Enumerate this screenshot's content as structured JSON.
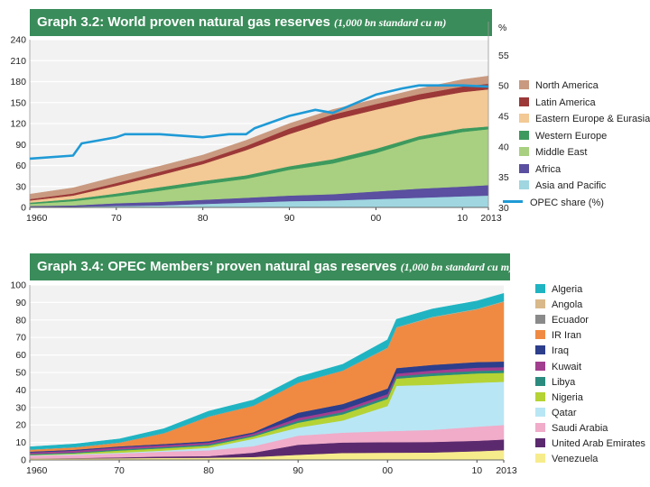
{
  "chart_data": [
    {
      "type": "area",
      "title": "Graph 3.2: World proven natural gas reserves",
      "unit": "(1,000 bn standard cu m)",
      "x": [
        1960,
        1965,
        1970,
        1975,
        1980,
        1985,
        1990,
        1995,
        2000,
        2005,
        2010,
        2013
      ],
      "x_ticks": [
        "1960",
        "70",
        "80",
        "90",
        "00",
        "10",
        "2013"
      ],
      "x_tick_values": [
        1960,
        1970,
        1980,
        1990,
        2000,
        2010,
        2013
      ],
      "ylim": [
        0,
        240
      ],
      "y_ticks": [
        "0",
        "30",
        "60",
        "90",
        "120",
        "150",
        "180",
        "210",
        "240"
      ],
      "y2_label": "%",
      "y2lim": [
        30,
        57.5
      ],
      "y2_ticks": [
        "30",
        "35",
        "40",
        "45",
        "50",
        "55"
      ],
      "stacked": true,
      "series": [
        {
          "name": "Asia and Pacific",
          "color": "#9fd6e0",
          "values": [
            1,
            1,
            2,
            3,
            5,
            7,
            9,
            10,
            12,
            14,
            16,
            17
          ]
        },
        {
          "name": "Africa",
          "color": "#5a4fa0",
          "values": [
            1,
            2,
            4,
            5,
            6,
            7,
            8,
            9,
            11,
            13,
            14,
            15
          ]
        },
        {
          "name": "Middle East",
          "color": "#a8d080",
          "values": [
            3,
            6,
            10,
            16,
            22,
            27,
            37,
            44,
            55,
            70,
            78,
            80
          ]
        },
        {
          "name": "Western Europe",
          "color": "#3d9a5e",
          "values": [
            2,
            3,
            4,
            5,
            5,
            5,
            5,
            6,
            6,
            5,
            5,
            4
          ]
        },
        {
          "name": "Eastern Europe & Eurasia",
          "color": "#f3c995",
          "values": [
            3,
            5,
            11,
            17,
            24,
            36,
            46,
            56,
            56,
            52,
            52,
            53
          ]
        },
        {
          "name": "Latin America",
          "color": "#9c3838",
          "values": [
            2,
            3,
            4,
            5,
            5,
            6,
            8,
            8,
            8,
            8,
            8,
            8
          ]
        },
        {
          "name": "North America",
          "color": "#c99a80",
          "values": [
            7,
            8,
            9,
            8,
            8,
            8,
            7,
            7,
            7,
            8,
            10,
            11
          ]
        }
      ],
      "line_series": {
        "name": "OPEC share (%)",
        "color": "#1f9ad6",
        "x": [
          1960,
          1965,
          1966,
          1968,
          1970,
          1971,
          1975,
          1980,
          1983,
          1985,
          1986,
          1990,
          1993,
          1995,
          2000,
          2003,
          2005,
          2008,
          2010,
          2013
        ],
        "values": [
          38,
          38.5,
          40.5,
          41,
          41.5,
          42,
          42,
          41.5,
          42,
          42,
          43,
          45,
          46,
          45.5,
          48.5,
          49.5,
          50,
          50,
          50,
          49.8
        ]
      }
    },
    {
      "type": "area",
      "title": "Graph 3.4: OPEC Members’ proven natural gas reserves",
      "unit": "(1,000 bn standard cu m)",
      "x": [
        1960,
        1965,
        1970,
        1975,
        1980,
        1985,
        1990,
        1995,
        2000,
        2001,
        2005,
        2010,
        2013
      ],
      "x_ticks": [
        "1960",
        "70",
        "80",
        "90",
        "00",
        "10",
        "2013"
      ],
      "x_tick_values": [
        1960,
        1970,
        1980,
        1990,
        2000,
        2010,
        2013
      ],
      "ylim": [
        0,
        100
      ],
      "y_ticks": [
        "0",
        "10",
        "20",
        "30",
        "40",
        "50",
        "60",
        "70",
        "80",
        "90",
        "100"
      ],
      "stacked": true,
      "series": [
        {
          "name": "Venezuela",
          "color": "#f7ec8c",
          "values": [
            0.8,
            0.8,
            1,
            1.2,
            1.3,
            1.7,
            3,
            4,
            4.2,
            4.2,
            4.3,
            5,
            5.6
          ]
        },
        {
          "name": "United Arab Emirates",
          "color": "#5b2a6e",
          "values": [
            0.1,
            0.3,
            0.5,
            0.8,
            0.9,
            2.5,
            5.7,
            6,
            6,
            6,
            6,
            6,
            6.1
          ]
        },
        {
          "name": "Saudi Arabia",
          "color": "#f0acc9",
          "values": [
            1.5,
            1.8,
            2.2,
            2.8,
            3.3,
            3.7,
            5.2,
            5.6,
            6.3,
            6.4,
            6.9,
            8,
            8.3
          ]
        },
        {
          "name": "Qatar",
          "color": "#b9e6f4",
          "values": [
            0.3,
            0.4,
            0.5,
            0.6,
            1.5,
            4.2,
            4.6,
            7,
            14.4,
            25.8,
            25.8,
            25.2,
            24.7
          ]
        },
        {
          "name": "Nigeria",
          "color": "#b5d334",
          "values": [
            0.2,
            0.5,
            1.2,
            1.3,
            1.2,
            1.3,
            2.8,
            3.5,
            4,
            4.1,
            5.1,
            5.3,
            5.1
          ]
        },
        {
          "name": "Libya",
          "color": "#2b8b7e",
          "values": [
            0.5,
            0.5,
            0.7,
            0.7,
            0.7,
            0.7,
            1.2,
            1.3,
            1.3,
            1.3,
            1.5,
            1.5,
            1.5
          ]
        },
        {
          "name": "Kuwait",
          "color": "#a23e8f",
          "values": [
            0.9,
            1,
            1.1,
            1.1,
            1,
            1,
            1.5,
            1.5,
            1.5,
            1.6,
            1.6,
            1.8,
            1.8
          ]
        },
        {
          "name": "Iraq",
          "color": "#2c3e8c",
          "values": [
            0.5,
            0.6,
            0.6,
            0.7,
            0.8,
            0.8,
            3,
            3.1,
            3.1,
            3.1,
            3.2,
            3.2,
            3.2
          ]
        },
        {
          "name": "IR Iran",
          "color": "#f08a43",
          "values": [
            1,
            1.2,
            2,
            6,
            14,
            15,
            17,
            19,
            23,
            23,
            27,
            30,
            34
          ]
        },
        {
          "name": "Ecuador",
          "color": "#8a8a8a",
          "values": [
            0.1,
            0.1,
            0.1,
            0.1,
            0.1,
            0.1,
            0.1,
            0.1,
            0.1,
            0.1,
            0.1,
            0.1,
            0.1
          ]
        },
        {
          "name": "Angola",
          "color": "#d9b98a",
          "values": [
            0.1,
            0.1,
            0.1,
            0.1,
            0.1,
            0.1,
            0.1,
            0.1,
            0.3,
            0.3,
            0.3,
            0.3,
            0.3
          ]
        },
        {
          "name": "Algeria",
          "color": "#20b4c2",
          "values": [
            1.5,
            1.8,
            2,
            2.5,
            3,
            3.2,
            3.2,
            3.5,
            4.5,
            4.5,
            4.5,
            4.5,
            4.5
          ]
        }
      ]
    }
  ]
}
